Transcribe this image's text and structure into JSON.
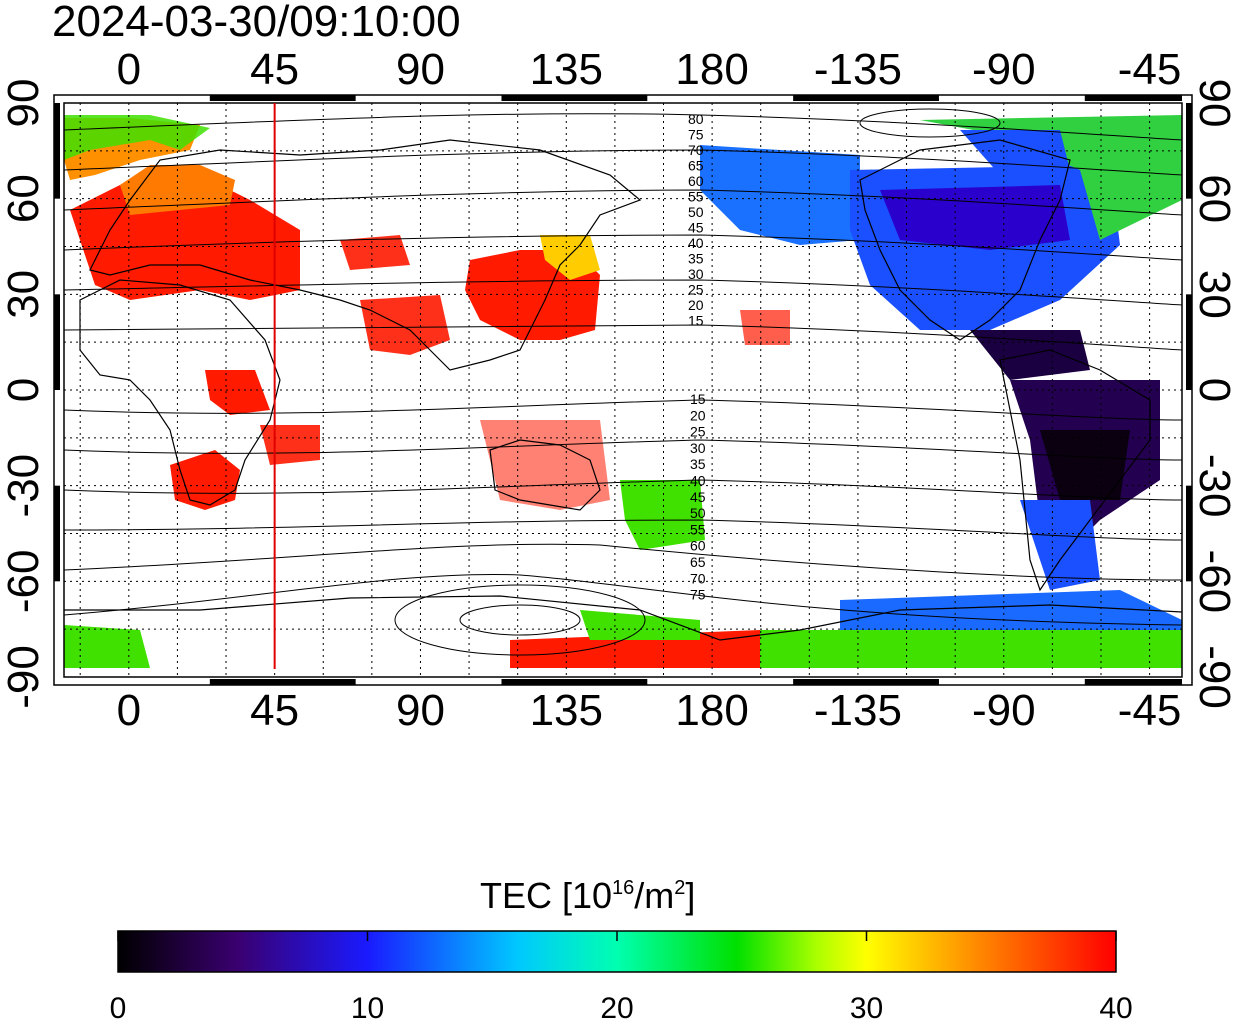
{
  "title": "2024-03-30/09:10:00",
  "map": {
    "lon_ticks": [
      "0",
      "45",
      "90",
      "135",
      "180",
      "-135",
      "-90",
      "-45"
    ],
    "lon_values": [
      0,
      45,
      90,
      135,
      180,
      225,
      270,
      315
    ],
    "lat_ticks": [
      "90",
      "60",
      "30",
      "0",
      "-30",
      "-60",
      "-90"
    ],
    "lat_values": [
      90,
      60,
      30,
      0,
      -30,
      -60,
      -90
    ],
    "lon_range": [
      -20,
      325
    ],
    "lat_range": [
      -90,
      90
    ],
    "grid": "dotted",
    "marker_line_lon": 45,
    "marker_line_color": "#e00000",
    "contour_labels_north": [
      "80",
      "75",
      "70",
      "65",
      "60",
      "55",
      "50",
      "45",
      "40",
      "35",
      "30",
      "25",
      "20",
      "15"
    ],
    "contour_labels_south": [
      "15",
      "20",
      "25",
      "30",
      "35",
      "40",
      "45",
      "50",
      "55",
      "60",
      "65",
      "70",
      "75"
    ]
  },
  "colorbar": {
    "label_prefix": "TEC  [10",
    "label_sup1": "16",
    "label_mid": "/m",
    "label_sup2": "2",
    "label_suffix": "]",
    "ticks": [
      "0",
      "10",
      "20",
      "30",
      "40"
    ],
    "tick_values": [
      0,
      10,
      20,
      30,
      40
    ],
    "range": [
      0,
      40
    ],
    "colors": [
      "#000000",
      "#3a0070",
      "#1a1aff",
      "#00aaff",
      "#00ffcc",
      "#00e000",
      "#aaff00",
      "#ffff00",
      "#ff8000",
      "#ff0000"
    ]
  }
}
